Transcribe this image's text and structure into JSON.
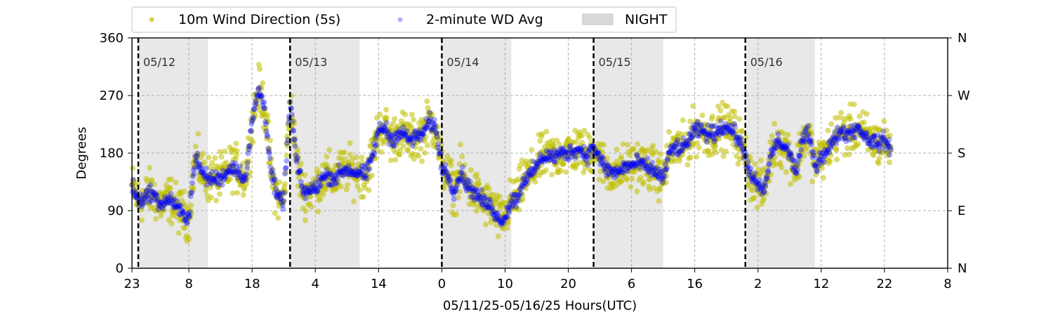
{
  "chart_data": {
    "type": "scatter",
    "title": "",
    "xlabel": "05/11/25-05/16/25  Hours(UTC)",
    "ylabel": "Degrees",
    "x_range_hours": [
      0,
      129
    ],
    "ylim": [
      0,
      360
    ],
    "y_ticks": [
      0,
      90,
      180,
      270,
      360
    ],
    "y_ticks_right": [
      "N",
      "E",
      "S",
      "W",
      "N"
    ],
    "x_ticks": [
      {
        "hour": 0,
        "label": "23"
      },
      {
        "hour": 9,
        "label": "8"
      },
      {
        "hour": 19,
        "label": "18"
      },
      {
        "hour": 29,
        "label": "4"
      },
      {
        "hour": 39,
        "label": "14"
      },
      {
        "hour": 49,
        "label": "0"
      },
      {
        "hour": 59,
        "label": "10"
      },
      {
        "hour": 69,
        "label": "20"
      },
      {
        "hour": 79,
        "label": "6"
      },
      {
        "hour": 89,
        "label": "16"
      },
      {
        "hour": 99,
        "label": "2"
      },
      {
        "hour": 109,
        "label": "12"
      },
      {
        "hour": 119,
        "label": "22"
      },
      {
        "hour": 129,
        "label": "8"
      }
    ],
    "grid": true,
    "legend_position": "top",
    "night_periods": [
      [
        1,
        12
      ],
      [
        25,
        36
      ],
      [
        49,
        60
      ],
      [
        73,
        84
      ],
      [
        97,
        108
      ]
    ],
    "day_markers": [
      {
        "hour": 1,
        "label": "05/12"
      },
      {
        "hour": 25,
        "label": "05/13"
      },
      {
        "hour": 49,
        "label": "05/14"
      },
      {
        "hour": 73,
        "label": "05/15"
      },
      {
        "hour": 97,
        "label": "05/16"
      }
    ],
    "series": [
      {
        "name": "10m Wind Direction (5s)",
        "color": "#bfbf00",
        "spread_deg": 35,
        "x": [
          0,
          1,
          2,
          3,
          4,
          5,
          6,
          7,
          8,
          9,
          10,
          11,
          12,
          13,
          14,
          15,
          16,
          17,
          18,
          19,
          20,
          21,
          22,
          23,
          24,
          25,
          26,
          27,
          28,
          29,
          30,
          31,
          32,
          33,
          34,
          35,
          36,
          37,
          38,
          39,
          40,
          41,
          42,
          43,
          44,
          45,
          46,
          47,
          48,
          49,
          50,
          51,
          52,
          53,
          54,
          55,
          56,
          57,
          58,
          59,
          60,
          61,
          62,
          63,
          64,
          65,
          66,
          67,
          68,
          69,
          70,
          71,
          72,
          73,
          74,
          75,
          76,
          77,
          78,
          79,
          80,
          81,
          82,
          83,
          84,
          85,
          86,
          87,
          88,
          89,
          90,
          91,
          92,
          93,
          94,
          95,
          96,
          97,
          98,
          99,
          100,
          101,
          102,
          103,
          104,
          105,
          106,
          107,
          108,
          109,
          110,
          111,
          112,
          113,
          114,
          115,
          116,
          117,
          118,
          119,
          120
        ],
        "y": [
          130,
          105,
          110,
          120,
          105,
          100,
          110,
          95,
          85,
          80,
          175,
          150,
          140,
          140,
          140,
          150,
          160,
          150,
          140,
          230,
          280,
          250,
          150,
          110,
          105,
          260,
          170,
          120,
          120,
          125,
          140,
          145,
          140,
          150,
          155,
          150,
          150,
          145,
          175,
          215,
          220,
          200,
          210,
          210,
          200,
          205,
          210,
          230,
          220,
          160,
          145,
          120,
          150,
          130,
          120,
          110,
          100,
          95,
          75,
          80,
          105,
          110,
          140,
          145,
          160,
          175,
          175,
          175,
          180,
          180,
          185,
          185,
          175,
          190,
          170,
          155,
          150,
          150,
          160,
          160,
          165,
          160,
          155,
          150,
          140,
          180,
          190,
          185,
          200,
          215,
          215,
          210,
          210,
          220,
          220,
          215,
          200,
          175,
          140,
          130,
          120,
          175,
          200,
          190,
          180,
          150,
          200,
          210,
          160,
          175,
          185,
          200,
          215,
          210,
          215,
          220,
          205,
          200,
          195,
          200,
          185
        ]
      },
      {
        "name": "2-minute WD Avg",
        "color": "#0000ff",
        "spread_deg": 12,
        "x": [
          0,
          1,
          2,
          3,
          4,
          5,
          6,
          7,
          8,
          9,
          10,
          11,
          12,
          13,
          14,
          15,
          16,
          17,
          18,
          19,
          20,
          21,
          22,
          23,
          24,
          25,
          26,
          27,
          28,
          29,
          30,
          31,
          32,
          33,
          34,
          35,
          36,
          37,
          38,
          39,
          40,
          41,
          42,
          43,
          44,
          45,
          46,
          47,
          48,
          49,
          50,
          51,
          52,
          53,
          54,
          55,
          56,
          57,
          58,
          59,
          60,
          61,
          62,
          63,
          64,
          65,
          66,
          67,
          68,
          69,
          70,
          71,
          72,
          73,
          74,
          75,
          76,
          77,
          78,
          79,
          80,
          81,
          82,
          83,
          84,
          85,
          86,
          87,
          88,
          89,
          90,
          91,
          92,
          93,
          94,
          95,
          96,
          97,
          98,
          99,
          100,
          101,
          102,
          103,
          104,
          105,
          106,
          107,
          108,
          109,
          110,
          111,
          112,
          113,
          114,
          115,
          116,
          117,
          118,
          119,
          120
        ],
        "y": [
          130,
          105,
          110,
          120,
          105,
          100,
          110,
          95,
          85,
          80,
          175,
          150,
          140,
          140,
          140,
          150,
          160,
          150,
          140,
          230,
          280,
          250,
          150,
          110,
          105,
          260,
          170,
          120,
          120,
          125,
          140,
          145,
          140,
          150,
          155,
          150,
          150,
          145,
          175,
          215,
          220,
          200,
          210,
          210,
          200,
          205,
          210,
          230,
          220,
          160,
          145,
          120,
          150,
          130,
          120,
          110,
          100,
          95,
          75,
          80,
          105,
          110,
          140,
          145,
          160,
          175,
          175,
          175,
          180,
          180,
          185,
          185,
          175,
          190,
          170,
          155,
          150,
          150,
          160,
          160,
          165,
          160,
          155,
          150,
          140,
          180,
          190,
          185,
          200,
          215,
          215,
          210,
          210,
          220,
          220,
          215,
          200,
          175,
          140,
          130,
          120,
          175,
          200,
          190,
          180,
          150,
          200,
          210,
          160,
          175,
          185,
          200,
          215,
          210,
          215,
          220,
          205,
          200,
          195,
          200,
          185
        ]
      }
    ],
    "night_legend": {
      "label": "NIGHT",
      "color": "#d9d9d9"
    }
  }
}
